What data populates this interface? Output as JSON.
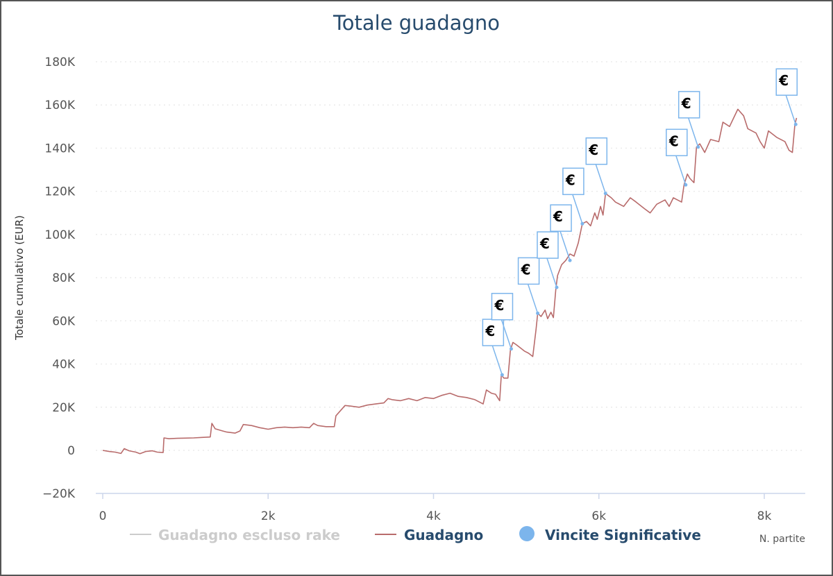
{
  "chart_data": {
    "type": "line",
    "title": "Totale guadagno",
    "xlabel": "N. partite",
    "ylabel": "Totale cumulativo (EUR)",
    "xlim": [
      0,
      8400
    ],
    "ylim": [
      -20000,
      180000
    ],
    "x_ticks": [
      {
        "value": 0,
        "label": "0"
      },
      {
        "value": 2000,
        "label": "2k"
      },
      {
        "value": 4000,
        "label": "4k"
      },
      {
        "value": 6000,
        "label": "6k"
      },
      {
        "value": 8000,
        "label": "8k"
      }
    ],
    "y_ticks": [
      {
        "value": -20000,
        "label": "−20K"
      },
      {
        "value": 0,
        "label": "0"
      },
      {
        "value": 20000,
        "label": "20K"
      },
      {
        "value": 40000,
        "label": "40K"
      },
      {
        "value": 60000,
        "label": "60K"
      },
      {
        "value": 80000,
        "label": "80K"
      },
      {
        "value": 100000,
        "label": "100K"
      },
      {
        "value": 120000,
        "label": "120K"
      },
      {
        "value": 140000,
        "label": "140K"
      },
      {
        "value": 160000,
        "label": "160K"
      },
      {
        "value": 180000,
        "label": "180K"
      }
    ],
    "grid": true,
    "legend_position": "bottom",
    "series": [
      {
        "name": "Guadagno escluso rake",
        "visible": false,
        "color": "#cccccc",
        "points": []
      },
      {
        "name": "Guadagno",
        "visible": true,
        "color": "#b86b6b",
        "points": [
          [
            0,
            0
          ],
          [
            80,
            -500
          ],
          [
            150,
            -800
          ],
          [
            220,
            -1400
          ],
          [
            260,
            800
          ],
          [
            320,
            -200
          ],
          [
            400,
            -800
          ],
          [
            450,
            -1500
          ],
          [
            520,
            -500
          ],
          [
            600,
            -200
          ],
          [
            660,
            -800
          ],
          [
            730,
            -1000
          ],
          [
            740,
            5800
          ],
          [
            800,
            5400
          ],
          [
            900,
            5600
          ],
          [
            1000,
            5700
          ],
          [
            1100,
            5800
          ],
          [
            1200,
            6000
          ],
          [
            1300,
            6200
          ],
          [
            1320,
            12500
          ],
          [
            1360,
            10000
          ],
          [
            1450,
            9000
          ],
          [
            1500,
            8500
          ],
          [
            1600,
            8000
          ],
          [
            1660,
            9000
          ],
          [
            1700,
            12000
          ],
          [
            1800,
            11500
          ],
          [
            1900,
            10500
          ],
          [
            2000,
            9800
          ],
          [
            2100,
            10500
          ],
          [
            2200,
            10800
          ],
          [
            2300,
            10500
          ],
          [
            2400,
            10800
          ],
          [
            2500,
            10500
          ],
          [
            2550,
            12500
          ],
          [
            2600,
            11500
          ],
          [
            2700,
            11000
          ],
          [
            2800,
            11000
          ],
          [
            2820,
            16000
          ],
          [
            2900,
            19500
          ],
          [
            2930,
            20800
          ],
          [
            3000,
            20500
          ],
          [
            3100,
            20000
          ],
          [
            3200,
            21000
          ],
          [
            3300,
            21500
          ],
          [
            3400,
            22000
          ],
          [
            3450,
            24000
          ],
          [
            3500,
            23500
          ],
          [
            3600,
            23000
          ],
          [
            3700,
            24000
          ],
          [
            3800,
            23000
          ],
          [
            3900,
            24500
          ],
          [
            4000,
            24000
          ],
          [
            4100,
            25500
          ],
          [
            4200,
            26500
          ],
          [
            4300,
            25000
          ],
          [
            4400,
            24500
          ],
          [
            4500,
            23500
          ],
          [
            4600,
            21500
          ],
          [
            4640,
            28000
          ],
          [
            4700,
            26500
          ],
          [
            4750,
            26000
          ],
          [
            4800,
            23000
          ],
          [
            4820,
            35000
          ],
          [
            4850,
            33500
          ],
          [
            4900,
            33500
          ],
          [
            4930,
            46500
          ],
          [
            4960,
            50000
          ],
          [
            5000,
            49000
          ],
          [
            5050,
            47500
          ],
          [
            5100,
            46000
          ],
          [
            5150,
            45000
          ],
          [
            5200,
            43500
          ],
          [
            5240,
            56000
          ],
          [
            5260,
            63500
          ],
          [
            5300,
            62000
          ],
          [
            5350,
            65000
          ],
          [
            5380,
            61000
          ],
          [
            5420,
            64000
          ],
          [
            5450,
            61500
          ],
          [
            5480,
            75000
          ],
          [
            5500,
            81000
          ],
          [
            5550,
            86000
          ],
          [
            5600,
            88000
          ],
          [
            5650,
            91000
          ],
          [
            5700,
            90000
          ],
          [
            5750,
            96000
          ],
          [
            5800,
            105000
          ],
          [
            5850,
            106000
          ],
          [
            5900,
            104000
          ],
          [
            5950,
            110000
          ],
          [
            5980,
            107000
          ],
          [
            6020,
            113000
          ],
          [
            6050,
            109000
          ],
          [
            6080,
            119000
          ],
          [
            6150,
            117000
          ],
          [
            6200,
            115000
          ],
          [
            6300,
            113000
          ],
          [
            6380,
            117000
          ],
          [
            6450,
            115000
          ],
          [
            6550,
            112000
          ],
          [
            6620,
            110000
          ],
          [
            6700,
            114000
          ],
          [
            6800,
            116000
          ],
          [
            6850,
            113000
          ],
          [
            6900,
            117000
          ],
          [
            6950,
            116000
          ],
          [
            7000,
            115000
          ],
          [
            7030,
            123000
          ],
          [
            7070,
            128000
          ],
          [
            7100,
            126000
          ],
          [
            7150,
            124000
          ],
          [
            7180,
            140500
          ],
          [
            7220,
            142000
          ],
          [
            7280,
            138000
          ],
          [
            7350,
            144000
          ],
          [
            7450,
            143000
          ],
          [
            7500,
            152000
          ],
          [
            7580,
            150000
          ],
          [
            7630,
            154000
          ],
          [
            7680,
            158000
          ],
          [
            7750,
            155000
          ],
          [
            7800,
            149000
          ],
          [
            7900,
            147000
          ],
          [
            7950,
            143000
          ],
          [
            8000,
            140000
          ],
          [
            8050,
            148000
          ],
          [
            8150,
            145000
          ],
          [
            8250,
            143000
          ],
          [
            8300,
            139000
          ],
          [
            8340,
            138000
          ],
          [
            8370,
            151000
          ],
          [
            8390,
            154000
          ]
        ]
      },
      {
        "name": "Vincite Significative",
        "visible": true,
        "color": "#7cb5ec",
        "flag_symbol": "€",
        "points": [
          [
            4830,
            35000
          ],
          [
            4940,
            47000
          ],
          [
            5260,
            63500
          ],
          [
            5490,
            75500
          ],
          [
            5650,
            88000
          ],
          [
            5800,
            105000
          ],
          [
            6080,
            119000
          ],
          [
            7050,
            123000
          ],
          [
            7200,
            140500
          ],
          [
            8380,
            151000
          ]
        ]
      }
    ]
  }
}
